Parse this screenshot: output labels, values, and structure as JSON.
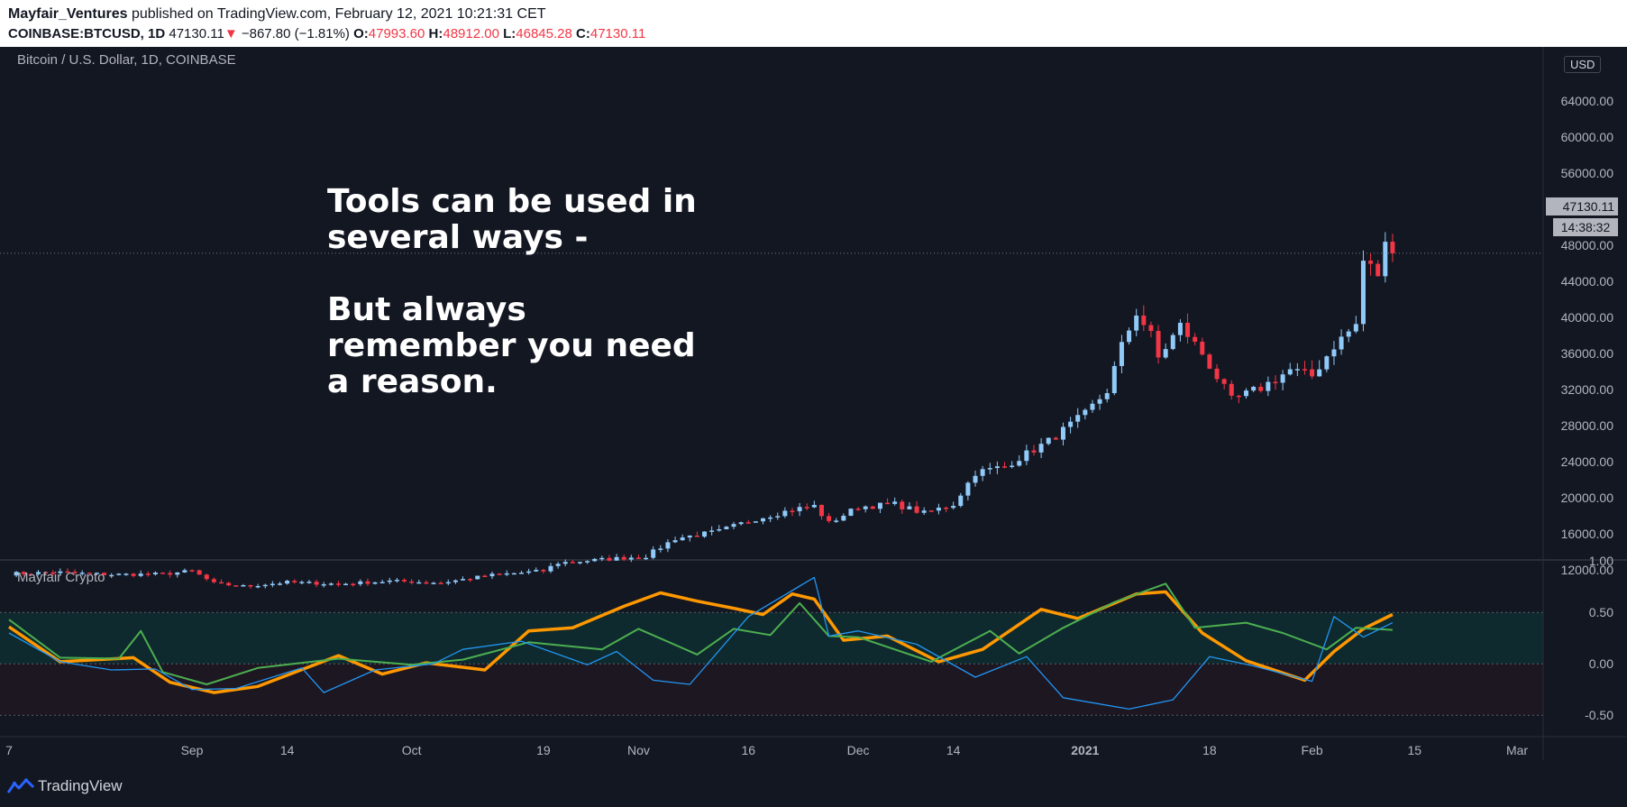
{
  "header": {
    "author": "Mayfair_Ventures",
    "published": " published on TradingView.com, February 12, 2021 10:21:31 CET",
    "symbol": "COINBASE:BTCUSD, 1D",
    "last": "47130.11",
    "change_arrow": "▼",
    "change": "−867.80 (−1.81%)",
    "o_label": "O:",
    "o_value": "47993.60",
    "h_label": "H:",
    "h_value": "48912.00",
    "l_label": "L:",
    "l_value": "46845.28",
    "c_label": "C:",
    "c_value": "47130.11"
  },
  "main_pane": {
    "title": "Bitcoin / U.S. Dollar, 1D, COINBASE",
    "currency": "USD",
    "price_tag": "47130.11",
    "time_tag": "14:38:32"
  },
  "annotation": "Tools can be used in\nseveral ways -\n\nBut always\nremember you need\na reason.",
  "indicator_pane": {
    "title": "Mayfair Crypto"
  },
  "footer": {
    "brand": "TradingView"
  },
  "colors": {
    "background": "#131722",
    "up": "#90caf9",
    "down": "#f23645",
    "orange_line": "#ff9800",
    "green_line": "#4caf50",
    "blue_line": "#2196f3",
    "upper_band_fill": "#0f2a2e",
    "lower_band_fill": "#1d1722"
  },
  "chart_data": [
    {
      "type": "candlestick",
      "title": "Bitcoin / U.S. Dollar, 1D, COINBASE",
      "x_ticks": [
        "7",
        "Sep",
        "14",
        "Oct",
        "19",
        "Nov",
        "16",
        "Dec",
        "14",
        "2021",
        "18",
        "Feb",
        "15",
        "Mar"
      ],
      "y_ticks": [
        "12000.00",
        "16000.00",
        "20000.00",
        "24000.00",
        "28000.00",
        "32000.00",
        "36000.00",
        "40000.00",
        "44000.00",
        "48000.00",
        "52000.00",
        "56000.00",
        "60000.00",
        "64000.00"
      ],
      "y_range": [
        10000,
        64000
      ],
      "x_range_dates": [
        "2020-08-07",
        "2021-03-01"
      ],
      "last_price": 47130.11,
      "series_close": [
        [
          "2020-08-07",
          11600
        ],
        [
          "2020-08-14",
          11750
        ],
        [
          "2020-08-21",
          11500
        ],
        [
          "2020-08-28",
          11550
        ],
        [
          "2020-09-01",
          11900
        ],
        [
          "2020-09-04",
          10500
        ],
        [
          "2020-09-08",
          10200
        ],
        [
          "2020-09-14",
          10650
        ],
        [
          "2020-09-21",
          10450
        ],
        [
          "2020-09-28",
          10780
        ],
        [
          "2020-10-05",
          10600
        ],
        [
          "2020-10-12",
          11450
        ],
        [
          "2020-10-19",
          11900
        ],
        [
          "2020-10-21",
          12800
        ],
        [
          "2020-10-26",
          13100
        ],
        [
          "2020-11-02",
          13550
        ],
        [
          "2020-11-06",
          15500
        ],
        [
          "2020-11-12",
          16300
        ],
        [
          "2020-11-17",
          17700
        ],
        [
          "2020-11-22",
          18700
        ],
        [
          "2020-11-25",
          19100
        ],
        [
          "2020-11-27",
          17200
        ],
        [
          "2020-12-01",
          19000
        ],
        [
          "2020-12-06",
          19300
        ],
        [
          "2020-12-10",
          18300
        ],
        [
          "2020-12-14",
          19300
        ],
        [
          "2020-12-17",
          22800
        ],
        [
          "2020-12-21",
          23500
        ],
        [
          "2020-12-27",
          26300
        ],
        [
          "2021-01-01",
          29300
        ],
        [
          "2021-01-04",
          31900
        ],
        [
          "2021-01-06",
          36800
        ],
        [
          "2021-01-08",
          40600
        ],
        [
          "2021-01-10",
          38000
        ],
        [
          "2021-01-11",
          35500
        ],
        [
          "2021-01-14",
          39100
        ],
        [
          "2021-01-17",
          36000
        ],
        [
          "2021-01-21",
          30800
        ],
        [
          "2021-01-25",
          32200
        ],
        [
          "2021-01-29",
          34200
        ],
        [
          "2021-02-01",
          33500
        ],
        [
          "2021-02-04",
          36900
        ],
        [
          "2021-02-07",
          39200
        ],
        [
          "2021-02-08",
          46300
        ],
        [
          "2021-02-10",
          44800
        ],
        [
          "2021-02-11",
          47990
        ],
        [
          "2021-02-12",
          47130
        ]
      ]
    },
    {
      "type": "line",
      "title": "Mayfair Crypto",
      "y_ticks": [
        "1.00",
        "0.50",
        "0.00",
        "-0.50"
      ],
      "y_range": [
        -0.5,
        1.0
      ],
      "bands": [
        0.5,
        0.0,
        -0.5
      ],
      "series": [
        {
          "color": "#ff9800",
          "points": [
            [
              "2020-08-07",
              0.36
            ],
            [
              "2020-08-14",
              0.02
            ],
            [
              "2020-08-24",
              0.06
            ],
            [
              "2020-08-29",
              -0.18
            ],
            [
              "2020-09-04",
              -0.28
            ],
            [
              "2020-09-10",
              -0.22
            ],
            [
              "2020-09-21",
              0.08
            ],
            [
              "2020-09-27",
              -0.1
            ],
            [
              "2020-10-03",
              0.01
            ],
            [
              "2020-10-11",
              -0.06
            ],
            [
              "2020-10-17",
              0.32
            ],
            [
              "2020-10-23",
              0.35
            ],
            [
              "2020-10-30",
              0.56
            ],
            [
              "2020-11-04",
              0.69
            ],
            [
              "2020-11-09",
              0.61
            ],
            [
              "2020-11-14",
              0.54
            ],
            [
              "2020-11-18",
              0.48
            ],
            [
              "2020-11-22",
              0.68
            ],
            [
              "2020-11-25",
              0.63
            ],
            [
              "2020-11-29",
              0.23
            ],
            [
              "2020-12-05",
              0.27
            ],
            [
              "2020-12-12",
              0.02
            ],
            [
              "2020-12-18",
              0.14
            ],
            [
              "2020-12-26",
              0.53
            ],
            [
              "2020-12-31",
              0.44
            ],
            [
              "2021-01-08",
              0.68
            ],
            [
              "2021-01-12",
              0.7
            ],
            [
              "2021-01-17",
              0.3
            ],
            [
              "2021-01-23",
              0.03
            ],
            [
              "2021-01-31",
              -0.16
            ],
            [
              "2021-02-04",
              0.12
            ],
            [
              "2021-02-08",
              0.34
            ],
            [
              "2021-02-12",
              0.48
            ]
          ]
        },
        {
          "color": "#4caf50",
          "points": [
            [
              "2020-08-07",
              0.43
            ],
            [
              "2020-08-14",
              0.06
            ],
            [
              "2020-08-22",
              0.05
            ],
            [
              "2020-08-25",
              0.32
            ],
            [
              "2020-08-28",
              -0.08
            ],
            [
              "2020-09-03",
              -0.2
            ],
            [
              "2020-09-10",
              -0.04
            ],
            [
              "2020-09-21",
              0.05
            ],
            [
              "2020-10-01",
              -0.01
            ],
            [
              "2020-10-08",
              0.04
            ],
            [
              "2020-10-17",
              0.21
            ],
            [
              "2020-10-27",
              0.14
            ],
            [
              "2020-11-01",
              0.34
            ],
            [
              "2020-11-09",
              0.09
            ],
            [
              "2020-11-14",
              0.34
            ],
            [
              "2020-11-19",
              0.28
            ],
            [
              "2020-11-23",
              0.59
            ],
            [
              "2020-11-27",
              0.27
            ],
            [
              "2020-12-01",
              0.26
            ],
            [
              "2020-12-11",
              0.02
            ],
            [
              "2020-12-19",
              0.32
            ],
            [
              "2020-12-23",
              0.1
            ],
            [
              "2020-12-29",
              0.35
            ],
            [
              "2021-01-05",
              0.6
            ],
            [
              "2021-01-12",
              0.78
            ],
            [
              "2021-01-16",
              0.35
            ],
            [
              "2021-01-23",
              0.4
            ],
            [
              "2021-01-28",
              0.3
            ],
            [
              "2021-02-03",
              0.14
            ],
            [
              "2021-02-07",
              0.35
            ],
            [
              "2021-02-12",
              0.33
            ]
          ]
        },
        {
          "color": "#2196f3",
          "points": [
            [
              "2020-08-07",
              0.3
            ],
            [
              "2020-08-14",
              0.02
            ],
            [
              "2020-08-21",
              -0.06
            ],
            [
              "2020-08-27",
              -0.05
            ],
            [
              "2020-09-01",
              -0.25
            ],
            [
              "2020-09-07",
              -0.24
            ],
            [
              "2020-09-16",
              -0.04
            ],
            [
              "2020-09-19",
              -0.28
            ],
            [
              "2020-09-26",
              -0.06
            ],
            [
              "2020-10-04",
              0.0
            ],
            [
              "2020-10-08",
              0.14
            ],
            [
              "2020-10-16",
              0.22
            ],
            [
              "2020-10-25",
              -0.01
            ],
            [
              "2020-10-29",
              0.12
            ],
            [
              "2020-11-03",
              -0.16
            ],
            [
              "2020-11-08",
              -0.2
            ],
            [
              "2020-11-16",
              0.46
            ],
            [
              "2020-11-25",
              0.84
            ],
            [
              "2020-11-27",
              0.27
            ],
            [
              "2020-12-01",
              0.32
            ],
            [
              "2020-12-09",
              0.19
            ],
            [
              "2020-12-17",
              -0.13
            ],
            [
              "2020-12-24",
              0.07
            ],
            [
              "2020-12-29",
              -0.33
            ],
            [
              "2021-01-07",
              -0.44
            ],
            [
              "2021-01-13",
              -0.35
            ],
            [
              "2021-01-18",
              0.07
            ],
            [
              "2021-01-24",
              -0.02
            ],
            [
              "2021-02-01",
              -0.17
            ],
            [
              "2021-02-04",
              0.46
            ],
            [
              "2021-02-08",
              0.26
            ],
            [
              "2021-02-12",
              0.4
            ]
          ]
        }
      ]
    }
  ]
}
